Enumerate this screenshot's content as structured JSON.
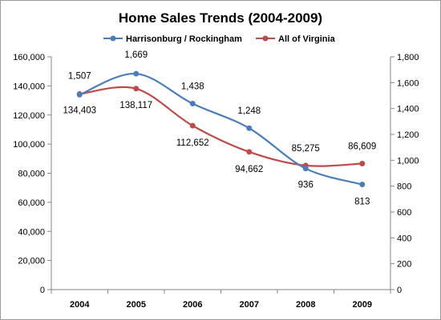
{
  "chart_data": {
    "type": "line",
    "title": "Home Sales Trends (2004-2009)",
    "categories": [
      "2004",
      "2005",
      "2006",
      "2007",
      "2008",
      "2009"
    ],
    "series": [
      {
        "name": "Harrisonburg / Rockingham",
        "axis": "right",
        "color": "#4a7ebb",
        "values": [
          1507,
          1669,
          1438,
          1248,
          936,
          813
        ],
        "labels": [
          "1,507",
          "1,669",
          "1,438",
          "1,248",
          "936",
          "813"
        ]
      },
      {
        "name": "All of Virginia",
        "axis": "left",
        "color": "#be4b48",
        "values": [
          134403,
          138117,
          112652,
          94662,
          85275,
          86609
        ],
        "labels": [
          "134,403",
          "138,117",
          "112,652",
          "94,662",
          "85,275",
          "86,609"
        ]
      }
    ],
    "y_left": {
      "lim": [
        0,
        160000
      ],
      "ticks": [
        "0",
        "20,000",
        "40,000",
        "60,000",
        "80,000",
        "100,000",
        "120,000",
        "140,000",
        "160,000"
      ]
    },
    "y_right": {
      "lim": [
        0,
        1800
      ],
      "ticks": [
        "0",
        "200",
        "400",
        "600",
        "800",
        "1,000",
        "1,200",
        "1,400",
        "1,600",
        "1,800"
      ]
    },
    "grid": false,
    "legend_position": "top",
    "smoothed": true
  }
}
